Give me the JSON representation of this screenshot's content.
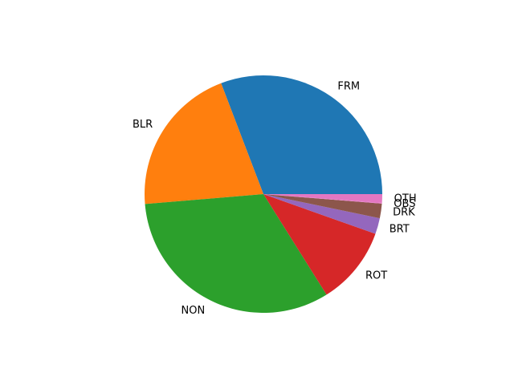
{
  "chart_data": {
    "type": "pie",
    "title": "",
    "start_angle_deg": 0,
    "direction": "counterclockwise",
    "slices": [
      {
        "label": "FRM",
        "value": 31.2,
        "color": "#1f77b4"
      },
      {
        "label": "BLR",
        "value": 20.8,
        "color": "#ff7f0e"
      },
      {
        "label": "NON",
        "value": 33.0,
        "color": "#2ca02c"
      },
      {
        "label": "ROT",
        "value": 10.8,
        "color": "#d62728"
      },
      {
        "label": "BRT",
        "value": 2.2,
        "color": "#9467bd"
      },
      {
        "label": "DRK",
        "value": 2.0,
        "color": "#8c564b"
      },
      {
        "label": "OBS",
        "value": 0.1,
        "color": "#e377c2"
      },
      {
        "label": "OTH",
        "value": 1.2,
        "color": "#e377c2"
      }
    ]
  }
}
